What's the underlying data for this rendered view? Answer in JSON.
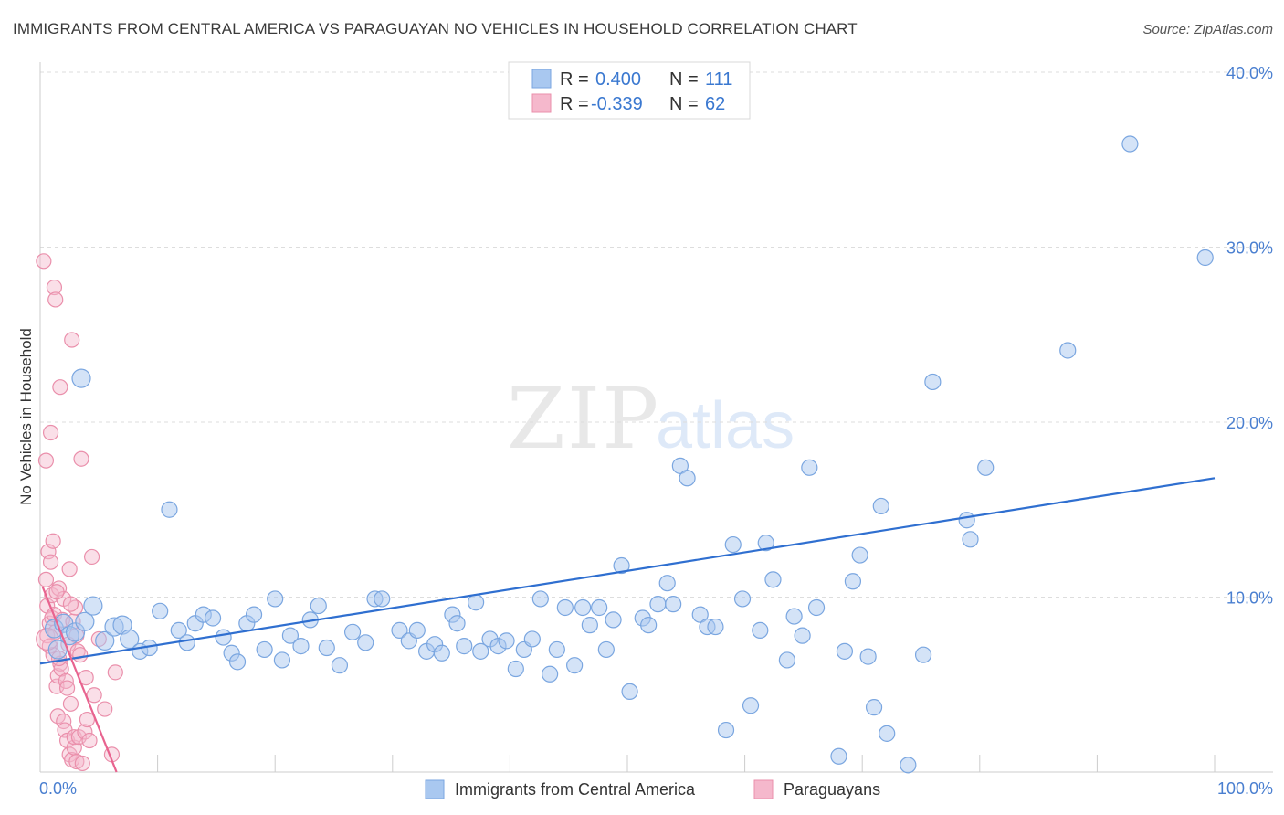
{
  "title": "IMMIGRANTS FROM CENTRAL AMERICA VS PARAGUAYAN NO VEHICLES IN HOUSEHOLD CORRELATION CHART",
  "source": "Source: ZipAtlas.com",
  "watermark": {
    "zip": "ZIP",
    "atlas": "atlas"
  },
  "legend": [
    {
      "r_label": "R =",
      "r_value": "0.400",
      "n_label": "N =",
      "n_value": "111",
      "color": "#a9c8f0"
    },
    {
      "r_label": "R =",
      "r_value": "-0.339",
      "n_label": "N =",
      "n_value": "62",
      "color": "#f5b8cc"
    }
  ],
  "colors": {
    "blue_fill": "#a9c8f0",
    "blue_stroke": "#7aa6e0",
    "blue_line": "#2f6fd0",
    "pink_fill": "#f5b8cc",
    "pink_stroke": "#ea8fab",
    "pink_line": "#e8638f"
  },
  "chart_data": {
    "type": "scatter",
    "title": "IMMIGRANTS FROM CENTRAL AMERICA VS PARAGUAYAN NO VEHICLES IN HOUSEHOLD CORRELATION CHART",
    "xlabel": "",
    "ylabel": "No Vehicles in Household",
    "xlim": [
      0,
      100
    ],
    "ylim": [
      0,
      40
    ],
    "x_tick_labels": [
      "0.0%",
      "100.0%"
    ],
    "y_ticks": [
      10,
      20,
      30,
      40
    ],
    "y_tick_labels": [
      "10.0%",
      "20.0%",
      "30.0%",
      "40.0%"
    ],
    "series": [
      {
        "name": "Immigrants from Central America",
        "color": "#a9c8f0",
        "trend": [
          [
            0,
            6.2
          ],
          [
            100,
            16.8
          ]
        ],
        "points": [
          [
            1.2,
            8.2
          ],
          [
            1.5,
            7.0
          ],
          [
            2.0,
            8.5
          ],
          [
            2.5,
            7.8
          ],
          [
            3.0,
            8.0
          ],
          [
            3.5,
            22.5
          ],
          [
            3.8,
            8.6
          ],
          [
            4.5,
            9.5
          ],
          [
            5.5,
            7.5
          ],
          [
            6.3,
            8.3
          ],
          [
            7.0,
            8.4
          ],
          [
            7.6,
            7.6
          ],
          [
            8.5,
            6.9
          ],
          [
            9.3,
            7.1
          ],
          [
            10.2,
            9.2
          ],
          [
            11.0,
            15.0
          ],
          [
            11.8,
            8.1
          ],
          [
            12.5,
            7.4
          ],
          [
            13.2,
            8.5
          ],
          [
            13.9,
            9.0
          ],
          [
            14.7,
            8.8
          ],
          [
            15.6,
            7.7
          ],
          [
            16.3,
            6.8
          ],
          [
            16.8,
            6.3
          ],
          [
            17.6,
            8.5
          ],
          [
            18.2,
            9.0
          ],
          [
            19.1,
            7.0
          ],
          [
            20.0,
            9.9
          ],
          [
            20.6,
            6.4
          ],
          [
            21.3,
            7.8
          ],
          [
            22.2,
            7.2
          ],
          [
            23.0,
            8.7
          ],
          [
            23.7,
            9.5
          ],
          [
            24.4,
            7.1
          ],
          [
            25.5,
            6.1
          ],
          [
            26.6,
            8.0
          ],
          [
            27.7,
            7.4
          ],
          [
            28.5,
            9.9
          ],
          [
            29.1,
            9.9
          ],
          [
            30.6,
            8.1
          ],
          [
            31.4,
            7.5
          ],
          [
            32.1,
            8.1
          ],
          [
            32.9,
            6.9
          ],
          [
            33.6,
            7.3
          ],
          [
            34.2,
            6.8
          ],
          [
            35.1,
            9.0
          ],
          [
            35.5,
            8.5
          ],
          [
            36.1,
            7.2
          ],
          [
            37.1,
            9.7
          ],
          [
            37.5,
            6.9
          ],
          [
            38.3,
            7.6
          ],
          [
            39.0,
            7.2
          ],
          [
            39.7,
            7.5
          ],
          [
            40.5,
            5.9
          ],
          [
            41.2,
            7.0
          ],
          [
            41.9,
            7.6
          ],
          [
            42.6,
            9.9
          ],
          [
            43.4,
            5.6
          ],
          [
            44.0,
            7.0
          ],
          [
            44.7,
            9.4
          ],
          [
            45.5,
            6.1
          ],
          [
            46.2,
            9.4
          ],
          [
            46.8,
            8.4
          ],
          [
            47.6,
            9.4
          ],
          [
            48.2,
            7.0
          ],
          [
            48.8,
            8.7
          ],
          [
            49.5,
            11.8
          ],
          [
            50.2,
            4.6
          ],
          [
            51.3,
            8.8
          ],
          [
            51.8,
            8.4
          ],
          [
            52.6,
            9.6
          ],
          [
            53.4,
            10.8
          ],
          [
            53.9,
            9.6
          ],
          [
            54.5,
            17.5
          ],
          [
            55.1,
            16.8
          ],
          [
            56.2,
            9.0
          ],
          [
            56.8,
            8.3
          ],
          [
            57.5,
            8.3
          ],
          [
            58.4,
            2.4
          ],
          [
            59.0,
            13.0
          ],
          [
            59.8,
            9.9
          ],
          [
            60.5,
            3.8
          ],
          [
            61.3,
            8.1
          ],
          [
            61.8,
            13.1
          ],
          [
            62.4,
            11.0
          ],
          [
            63.6,
            6.4
          ],
          [
            64.2,
            8.9
          ],
          [
            64.9,
            7.8
          ],
          [
            65.5,
            17.4
          ],
          [
            66.1,
            9.4
          ],
          [
            68.0,
            0.9
          ],
          [
            68.5,
            6.9
          ],
          [
            69.2,
            10.9
          ],
          [
            69.8,
            12.4
          ],
          [
            70.5,
            6.6
          ],
          [
            71.0,
            3.7
          ],
          [
            71.6,
            15.2
          ],
          [
            72.1,
            2.2
          ],
          [
            73.9,
            0.4
          ],
          [
            75.2,
            6.7
          ],
          [
            76.0,
            22.3
          ],
          [
            78.9,
            14.4
          ],
          [
            79.2,
            13.3
          ],
          [
            80.5,
            17.4
          ],
          [
            87.5,
            24.1
          ],
          [
            92.8,
            35.9
          ],
          [
            99.2,
            29.4
          ]
        ]
      },
      {
        "name": "Paraguayans",
        "color": "#f5b8cc",
        "trend": [
          [
            0.2,
            10.6
          ],
          [
            6.5,
            0.0
          ]
        ],
        "points": [
          [
            0.3,
            29.2
          ],
          [
            0.5,
            17.8
          ],
          [
            0.5,
            11.0
          ],
          [
            0.6,
            9.5
          ],
          [
            0.6,
            7.8
          ],
          [
            0.7,
            12.6
          ],
          [
            0.8,
            8.5
          ],
          [
            0.8,
            7.2
          ],
          [
            0.9,
            19.4
          ],
          [
            0.9,
            12.0
          ],
          [
            1.0,
            10.1
          ],
          [
            1.0,
            8.8
          ],
          [
            1.1,
            13.2
          ],
          [
            1.1,
            6.7
          ],
          [
            1.2,
            27.7
          ],
          [
            1.2,
            9.0
          ],
          [
            1.3,
            27.0
          ],
          [
            1.3,
            8.0
          ],
          [
            1.4,
            4.9
          ],
          [
            1.5,
            5.5
          ],
          [
            1.5,
            3.2
          ],
          [
            1.6,
            10.5
          ],
          [
            1.7,
            22.0
          ],
          [
            1.7,
            6.2
          ],
          [
            1.8,
            5.9
          ],
          [
            1.9,
            8.7
          ],
          [
            2.0,
            9.9
          ],
          [
            2.0,
            2.9
          ],
          [
            2.1,
            2.4
          ],
          [
            2.2,
            5.2
          ],
          [
            2.3,
            4.8
          ],
          [
            2.3,
            1.8
          ],
          [
            2.4,
            7.3
          ],
          [
            2.5,
            11.6
          ],
          [
            2.5,
            1.0
          ],
          [
            2.6,
            3.9
          ],
          [
            2.7,
            24.7
          ],
          [
            2.7,
            0.7
          ],
          [
            2.8,
            8.6
          ],
          [
            2.9,
            1.4
          ],
          [
            2.9,
            2.0
          ],
          [
            3.0,
            9.4
          ],
          [
            3.1,
            7.8
          ],
          [
            3.1,
            0.6
          ],
          [
            3.2,
            6.9
          ],
          [
            3.3,
            2.0
          ],
          [
            3.4,
            6.7
          ],
          [
            3.5,
            17.9
          ],
          [
            3.6,
            0.5
          ],
          [
            3.8,
            2.3
          ],
          [
            3.9,
            5.4
          ],
          [
            4.0,
            3.0
          ],
          [
            4.2,
            1.8
          ],
          [
            4.4,
            12.3
          ],
          [
            4.6,
            4.4
          ],
          [
            5.0,
            7.6
          ],
          [
            5.5,
            3.6
          ],
          [
            6.4,
            5.7
          ],
          [
            6.1,
            1.0
          ],
          [
            1.4,
            10.3
          ],
          [
            2.6,
            9.6
          ],
          [
            1.6,
            6.5
          ]
        ]
      }
    ],
    "legend": [
      "Immigrants from Central America",
      "Paraguayans"
    ]
  }
}
